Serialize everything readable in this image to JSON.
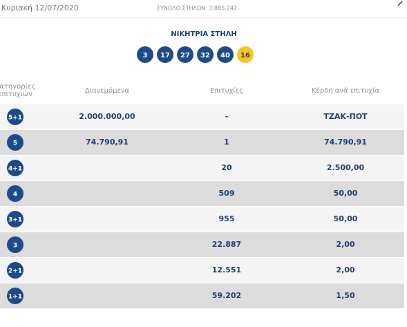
{
  "header": {
    "date": "Κυριακή 12/07/2020",
    "total": "ΣΥΝΟΛΟ ΣΤΗΛΩΝ: 3.885.242"
  },
  "winning": {
    "title": "ΝΙΚΗΤΡΙΑ ΣΤΗΛΗ",
    "numbers": [
      "3",
      "17",
      "27",
      "32",
      "40"
    ],
    "joker": "16"
  },
  "table": {
    "headers": [
      "Κατηγορίες επιτυχιών",
      "Διανεμόμενα",
      "Επιτυχίες",
      "Κέρδη ανά επιτυχία"
    ],
    "rows": [
      {
        "category": "5+1",
        "distributed": "2.000.000,00",
        "winners": "-",
        "prize": "ΤΖΑΚ-ΠΟΤ"
      },
      {
        "category": "5",
        "distributed": "74.790,91",
        "winners": "1",
        "prize": "74.790,91"
      },
      {
        "category": "4+1",
        "winners": "20",
        "prize": "2.500,00"
      },
      {
        "category": "4",
        "winners": "509",
        "prize": "50,00"
      },
      {
        "category": "3+1",
        "winners": "955",
        "prize": "50,00"
      },
      {
        "category": "3",
        "winners": "22.887",
        "prize": "2,00"
      },
      {
        "category": "2+1",
        "winners": "12.551",
        "prize": "2,00"
      },
      {
        "category": "1+1",
        "winners": "59.202",
        "prize": "1,50"
      }
    ]
  }
}
